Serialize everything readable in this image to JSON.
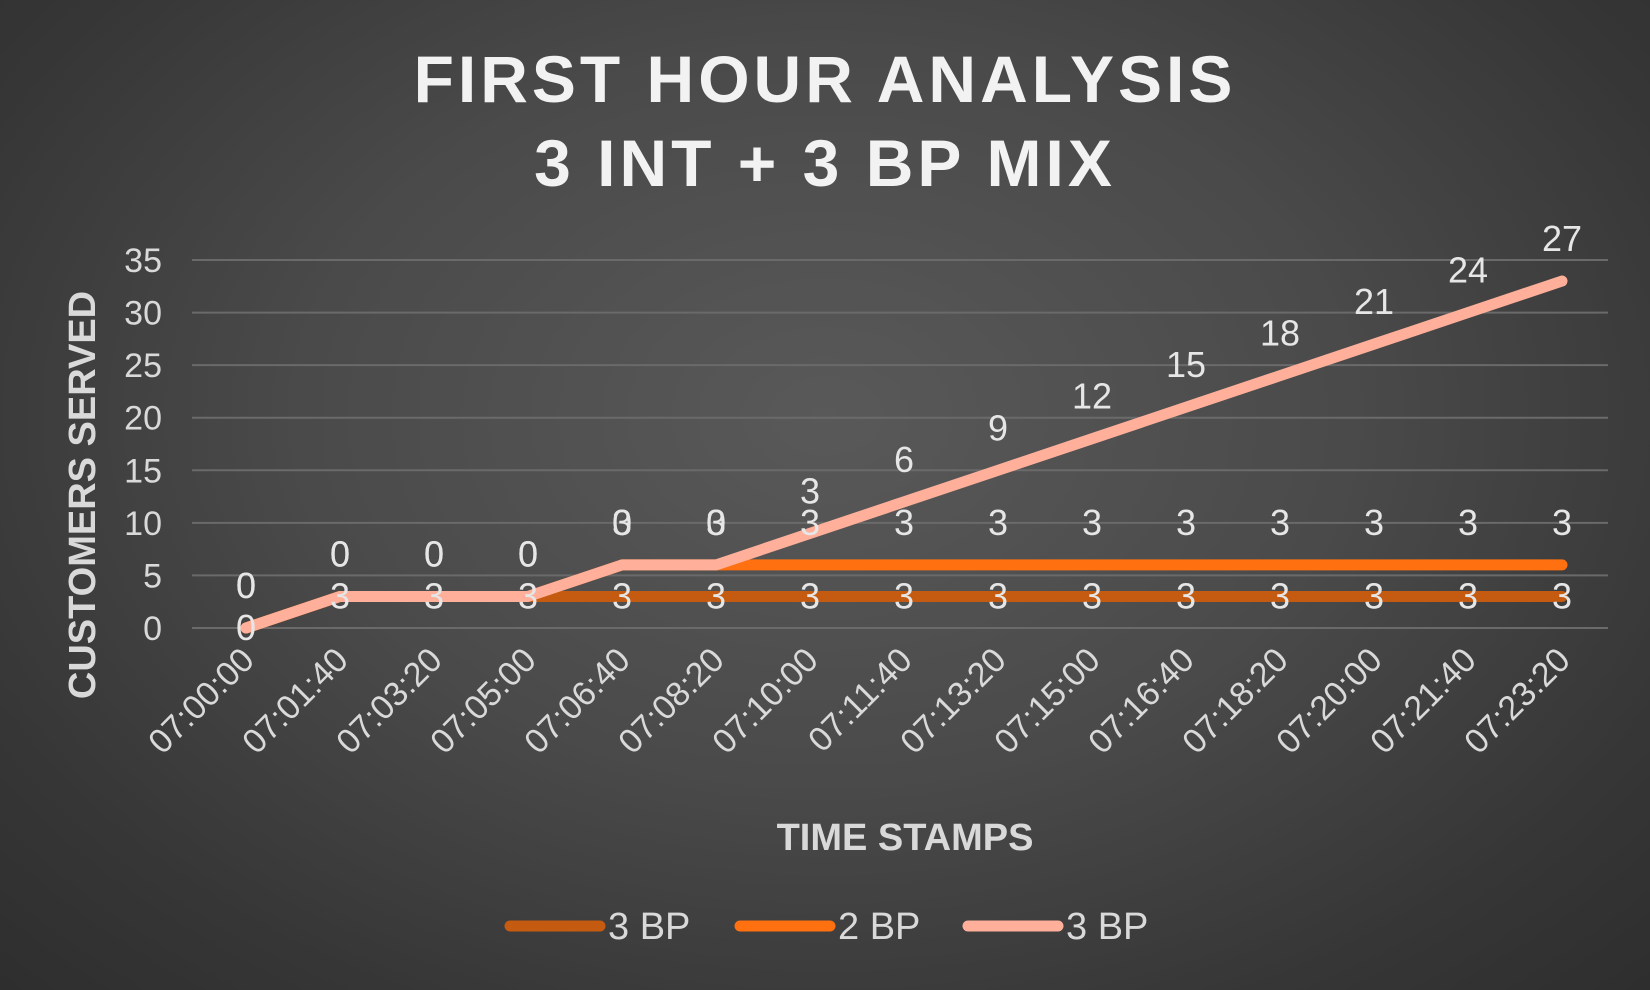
{
  "chart_data": {
    "type": "line",
    "title": "FIRST HOUR ANALYSIS",
    "subtitle": "3 INT + 3 BP MIX",
    "xlabel": "TIME STAMPS",
    "ylabel": "CUSTOMERS SERVED",
    "ylim": [
      0,
      35
    ],
    "yticks": [
      "0",
      "5",
      "10",
      "15",
      "20",
      "25",
      "30",
      "35"
    ],
    "grid": true,
    "legend_position": "bottom",
    "stacked": true,
    "categories": [
      "07:00:00",
      "07:01:40",
      "07:03:20",
      "07:05:00",
      "07:06:40",
      "07:08:20",
      "07:10:00",
      "07:11:40",
      "07:13:20",
      "07:15:00",
      "07:16:40",
      "07:18:20",
      "07:20:00",
      "07:21:40",
      "07:23:20"
    ],
    "series": [
      {
        "name": "3 BP",
        "color": "#c55a11",
        "values": [
          0,
          3,
          3,
          3,
          3,
          3,
          3,
          3,
          3,
          3,
          3,
          3,
          3,
          3,
          3
        ]
      },
      {
        "name": "2 BP",
        "color": "#ff7010",
        "values": [
          0,
          0,
          0,
          0,
          3,
          3,
          3,
          3,
          3,
          3,
          3,
          3,
          3,
          3,
          3
        ]
      },
      {
        "name": "3 BP",
        "color": "#ffaf9a",
        "values": [
          0,
          0,
          0,
          0,
          0,
          0,
          3,
          6,
          9,
          12,
          15,
          18,
          21,
          24,
          27
        ]
      }
    ]
  }
}
